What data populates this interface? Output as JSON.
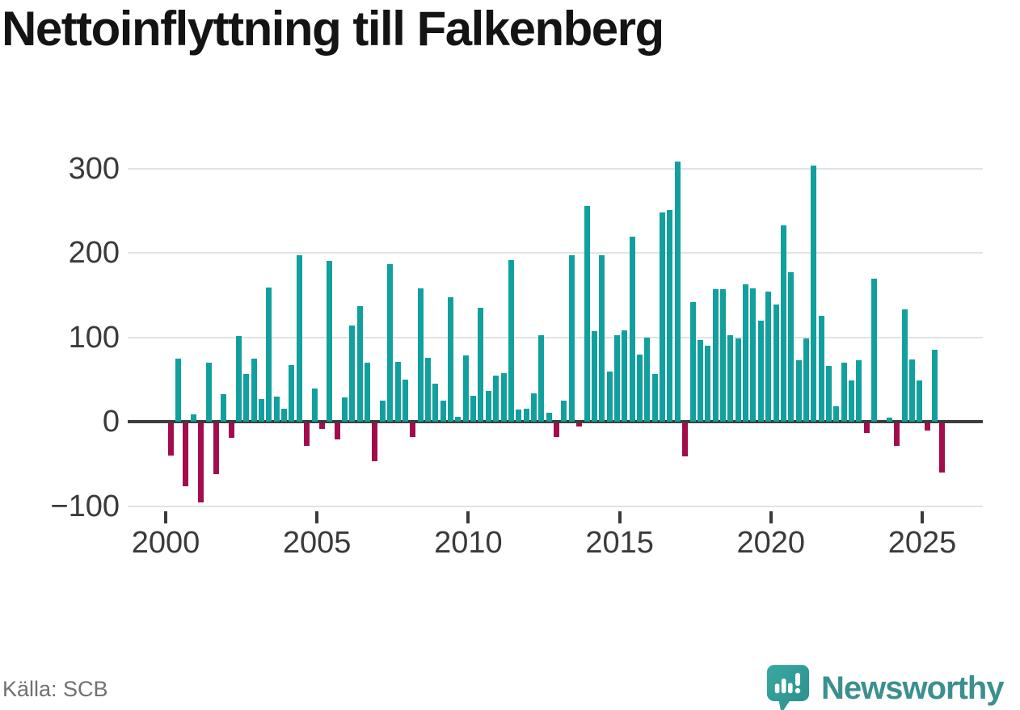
{
  "title": "Nettoinflyttning till Falkenberg",
  "source": "Källa: SCB",
  "logo": {
    "brand": "Newsworthy"
  },
  "chart_data": {
    "type": "bar",
    "title": "Nettoinflyttning till Falkenberg",
    "frequency": "quarterly",
    "x_range": [
      "2000Q1",
      "2025Q3"
    ],
    "values": [
      -38,
      75,
      -74,
      9,
      -93,
      70,
      -60,
      33,
      -17,
      102,
      57,
      75,
      27,
      159,
      30,
      16,
      67,
      197,
      -26,
      40,
      -6,
      191,
      -19,
      29,
      114,
      137,
      70,
      -45,
      25,
      187,
      71,
      50,
      -16,
      158,
      76,
      45,
      25,
      148,
      6,
      79,
      31,
      135,
      37,
      55,
      58,
      192,
      15,
      16,
      34,
      103,
      11,
      -16,
      25,
      197,
      -3,
      256,
      107,
      197,
      60,
      103,
      108,
      219,
      80,
      100,
      57,
      248,
      251,
      308,
      -39,
      142,
      97,
      90,
      157,
      157,
      103,
      99,
      163,
      158,
      120,
      154,
      139,
      233,
      177,
      73,
      99,
      303,
      126,
      66,
      19,
      70,
      49,
      73,
      -11,
      170,
      0,
      5,
      -26,
      133,
      74,
      49,
      -8,
      85,
      -58
    ],
    "xlabel": "",
    "ylabel": "",
    "x_tick_labels": [
      "2000",
      "2005",
      "2010",
      "2015",
      "2020",
      "2025"
    ],
    "y_ticks": [
      300,
      200,
      100,
      0,
      -100
    ],
    "y_tick_labels": [
      "300",
      "200",
      "100",
      "0",
      "−100"
    ],
    "ylim": [
      -100,
      320
    ],
    "grid": "horizontal",
    "legend": "none",
    "positive_color": "#12a09e",
    "negative_color": "#a30d4c",
    "zero_line_color": "#3d3d3d"
  }
}
